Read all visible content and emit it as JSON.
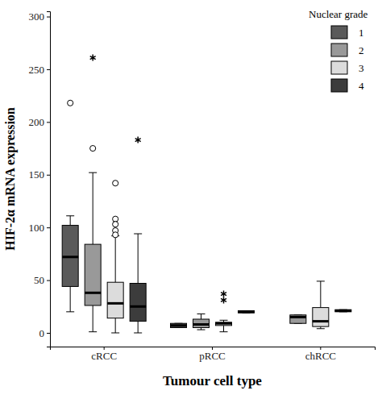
{
  "chart_data": {
    "type": "box",
    "x_label": "Tumour cell type",
    "y_label": "HIF-2α mRNA expression",
    "categories": [
      "cRCC",
      "pRCC",
      "chRCC"
    ],
    "ylim": [
      -13,
      305
    ],
    "yticks": [
      0,
      50,
      100,
      150,
      200,
      250,
      300
    ],
    "legend": "top-right",
    "legend_title": "Nuclear grade",
    "series": [
      {
        "name": "1",
        "color": "#5a5a5a",
        "boxes": [
          {
            "min": 20,
            "q1": 44,
            "median": 72,
            "q3": 102,
            "max": 111,
            "outliers": [
              218
            ],
            "extremes": []
          },
          {
            "min": 5,
            "q1": 5,
            "median": 7,
            "q3": 9,
            "max": 9,
            "outliers": [],
            "extremes": []
          },
          null
        ]
      },
      {
        "name": "2",
        "color": "#999999",
        "boxes": [
          {
            "min": 1,
            "q1": 26,
            "median": 38,
            "q3": 84,
            "max": 152,
            "outliers": [
              175
            ],
            "extremes": [
              261
            ]
          },
          {
            "min": 3,
            "q1": 5,
            "median": 8,
            "q3": 13,
            "max": 18,
            "outliers": [],
            "extremes": []
          },
          {
            "min": 9,
            "q1": 9,
            "median": 15,
            "q3": 17,
            "max": 17,
            "outliers": [],
            "extremes": []
          }
        ]
      },
      {
        "name": "3",
        "color": "#dcdcdc",
        "boxes": [
          {
            "min": 0,
            "q1": 14,
            "median": 28,
            "q3": 48,
            "max": 92,
            "outliers": [
              142,
              108,
              103,
              97,
              93
            ],
            "extremes": []
          },
          {
            "min": 1,
            "q1": 7,
            "median": 9,
            "q3": 10,
            "max": 12,
            "outliers": [],
            "extremes": [
              37,
              31
            ]
          },
          {
            "min": 4,
            "q1": 6,
            "median": 11,
            "q3": 24,
            "max": 49,
            "outliers": [],
            "extremes": []
          }
        ]
      },
      {
        "name": "4",
        "color": "#3c3c3c",
        "boxes": [
          {
            "min": 0,
            "q1": 11,
            "median": 25,
            "q3": 47,
            "max": 94,
            "outliers": [],
            "extremes": [
              183
            ]
          },
          {
            "min": 19,
            "q1": 19,
            "median": 20,
            "q3": 21,
            "max": 21,
            "outliers": [],
            "extremes": []
          },
          {
            "min": 20,
            "q1": 20,
            "median": 21,
            "q3": 22,
            "max": 22,
            "outliers": [],
            "extremes": []
          }
        ]
      }
    ]
  }
}
